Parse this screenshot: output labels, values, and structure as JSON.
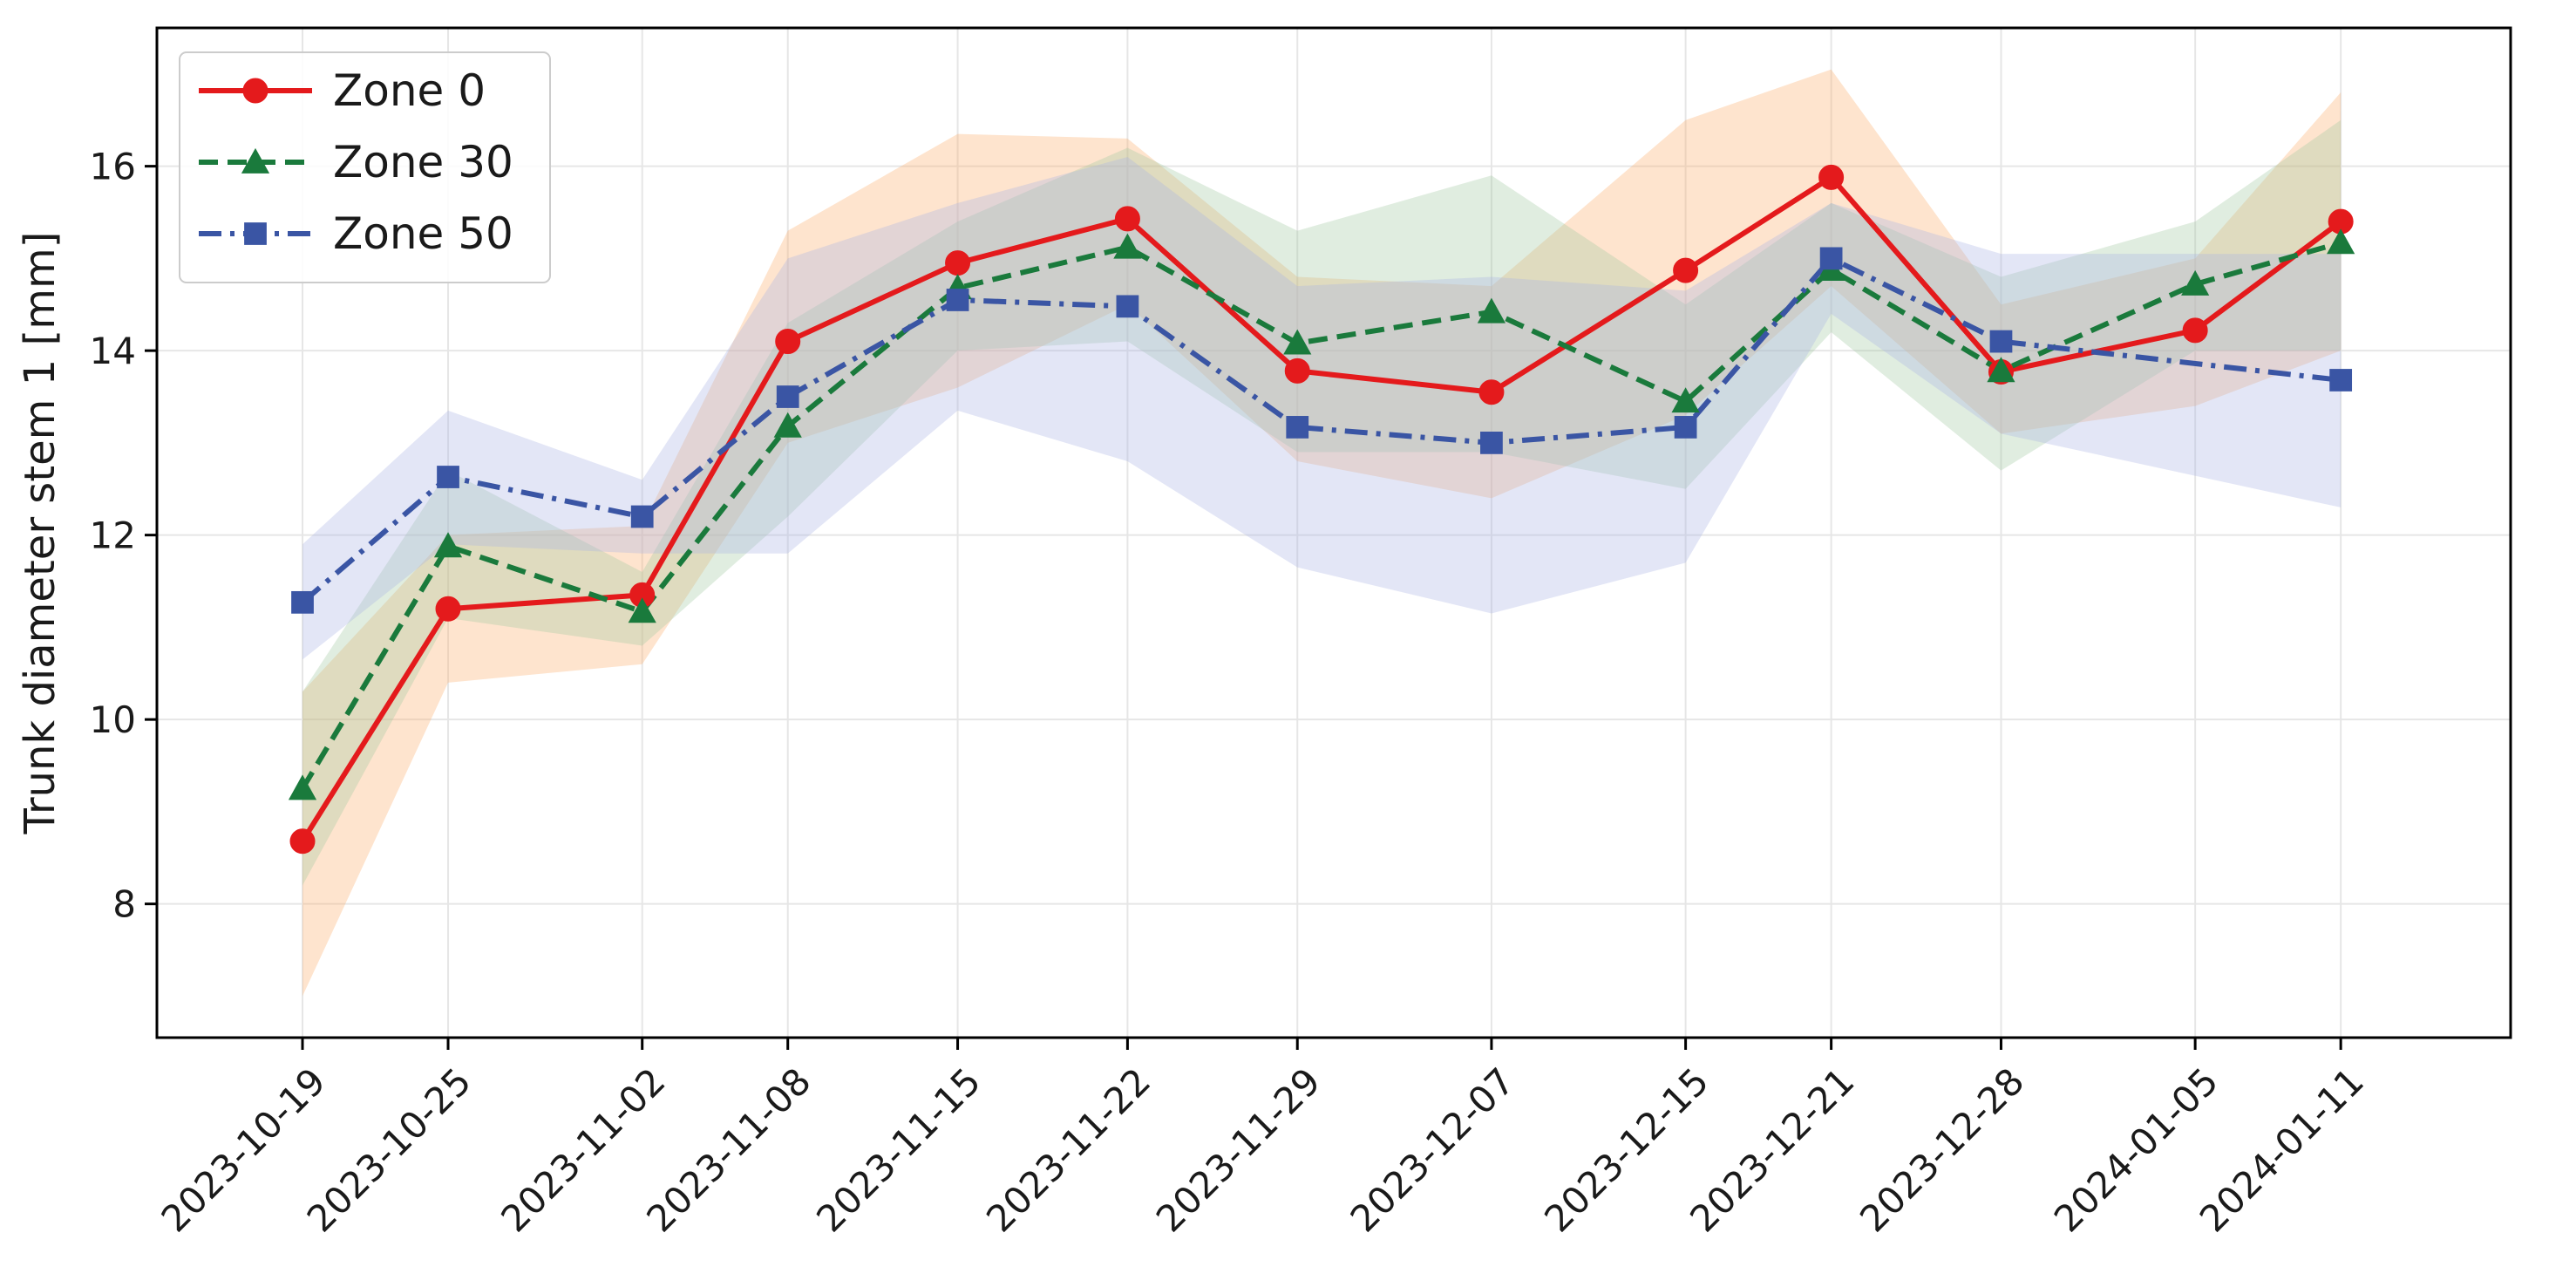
{
  "chart_data": {
    "type": "line",
    "title": "",
    "xlabel": "",
    "ylabel": "Trunk diameter stem 1 [mm]",
    "x": [
      "2023-10-19",
      "2023-10-25",
      "2023-11-02",
      "2023-11-08",
      "2023-11-15",
      "2023-11-22",
      "2023-11-29",
      "2023-12-07",
      "2023-12-15",
      "2023-12-21",
      "2023-12-28",
      "2024-01-05",
      "2024-01-11"
    ],
    "xlim": [
      "2023-10-13",
      "2024-01-18"
    ],
    "ylim": [
      6.55,
      17.5
    ],
    "yticks": [
      8,
      10,
      12,
      14,
      16
    ],
    "grid": true,
    "legend_position": "top-left",
    "series": [
      {
        "name": "Zone 0",
        "color": "#e41a1c",
        "band_color": "#fdae6b",
        "linestyle": "solid",
        "marker": "circle",
        "x": [
          "2023-10-19",
          "2023-10-25",
          "2023-11-02",
          "2023-11-08",
          "2023-11-15",
          "2023-11-22",
          "2023-11-29",
          "2023-12-07",
          "2023-12-15",
          "2023-12-21",
          "2023-12-28",
          "2024-01-05",
          "2024-01-11"
        ],
        "values": [
          8.68,
          11.2,
          11.35,
          14.1,
          14.95,
          15.43,
          13.78,
          13.55,
          14.87,
          15.88,
          13.77,
          14.22,
          15.4
        ],
        "lower": [
          7.0,
          10.4,
          10.6,
          13.0,
          13.6,
          14.5,
          12.8,
          12.4,
          13.3,
          14.7,
          13.1,
          13.4,
          14.0
        ],
        "upper": [
          10.3,
          12.0,
          12.1,
          15.3,
          16.35,
          16.3,
          14.8,
          14.7,
          16.5,
          17.05,
          14.5,
          15.0,
          16.8
        ]
      },
      {
        "name": "Zone 30",
        "color": "#1a7a3c",
        "band_color": "#a1c9a1",
        "linestyle": "dashed",
        "marker": "triangle",
        "x": [
          "2023-10-19",
          "2023-10-25",
          "2023-11-02",
          "2023-11-08",
          "2023-11-15",
          "2023-11-22",
          "2023-11-29",
          "2023-12-07",
          "2023-12-15",
          "2023-12-21",
          "2023-12-28",
          "2024-01-05",
          "2024-01-11"
        ],
        "values": [
          9.25,
          11.88,
          11.17,
          13.18,
          14.68,
          15.12,
          14.08,
          14.42,
          13.45,
          14.88,
          13.78,
          14.72,
          15.17
        ],
        "lower": [
          8.2,
          11.1,
          10.8,
          12.2,
          14.0,
          14.1,
          12.9,
          12.9,
          12.5,
          14.2,
          12.7,
          14.0,
          14.0
        ],
        "upper": [
          10.3,
          12.7,
          11.6,
          14.3,
          15.4,
          16.2,
          15.3,
          15.9,
          14.5,
          15.6,
          14.8,
          15.4,
          16.5
        ]
      },
      {
        "name": "Zone 50",
        "color": "#3a55a4",
        "band_color": "#aab4e3",
        "linestyle": "dashdot",
        "marker": "square",
        "x": [
          "2023-10-19",
          "2023-10-25",
          "2023-11-02",
          "2023-11-08",
          "2023-11-15",
          "2023-11-22",
          "2023-11-29",
          "2023-12-07",
          "2023-12-15",
          "2023-12-21",
          "2023-12-28",
          "2024-01-11"
        ],
        "values": [
          11.27,
          12.63,
          12.2,
          13.5,
          14.55,
          14.48,
          13.17,
          13.0,
          13.17,
          15.0,
          14.1,
          13.68
        ],
        "lower": [
          10.65,
          11.9,
          11.8,
          11.8,
          13.35,
          12.8,
          11.65,
          11.15,
          11.7,
          14.4,
          13.1,
          12.3
        ],
        "upper": [
          11.9,
          13.35,
          12.6,
          15.0,
          15.6,
          16.1,
          14.7,
          14.8,
          14.65,
          15.6,
          15.05,
          15.05
        ]
      }
    ]
  }
}
